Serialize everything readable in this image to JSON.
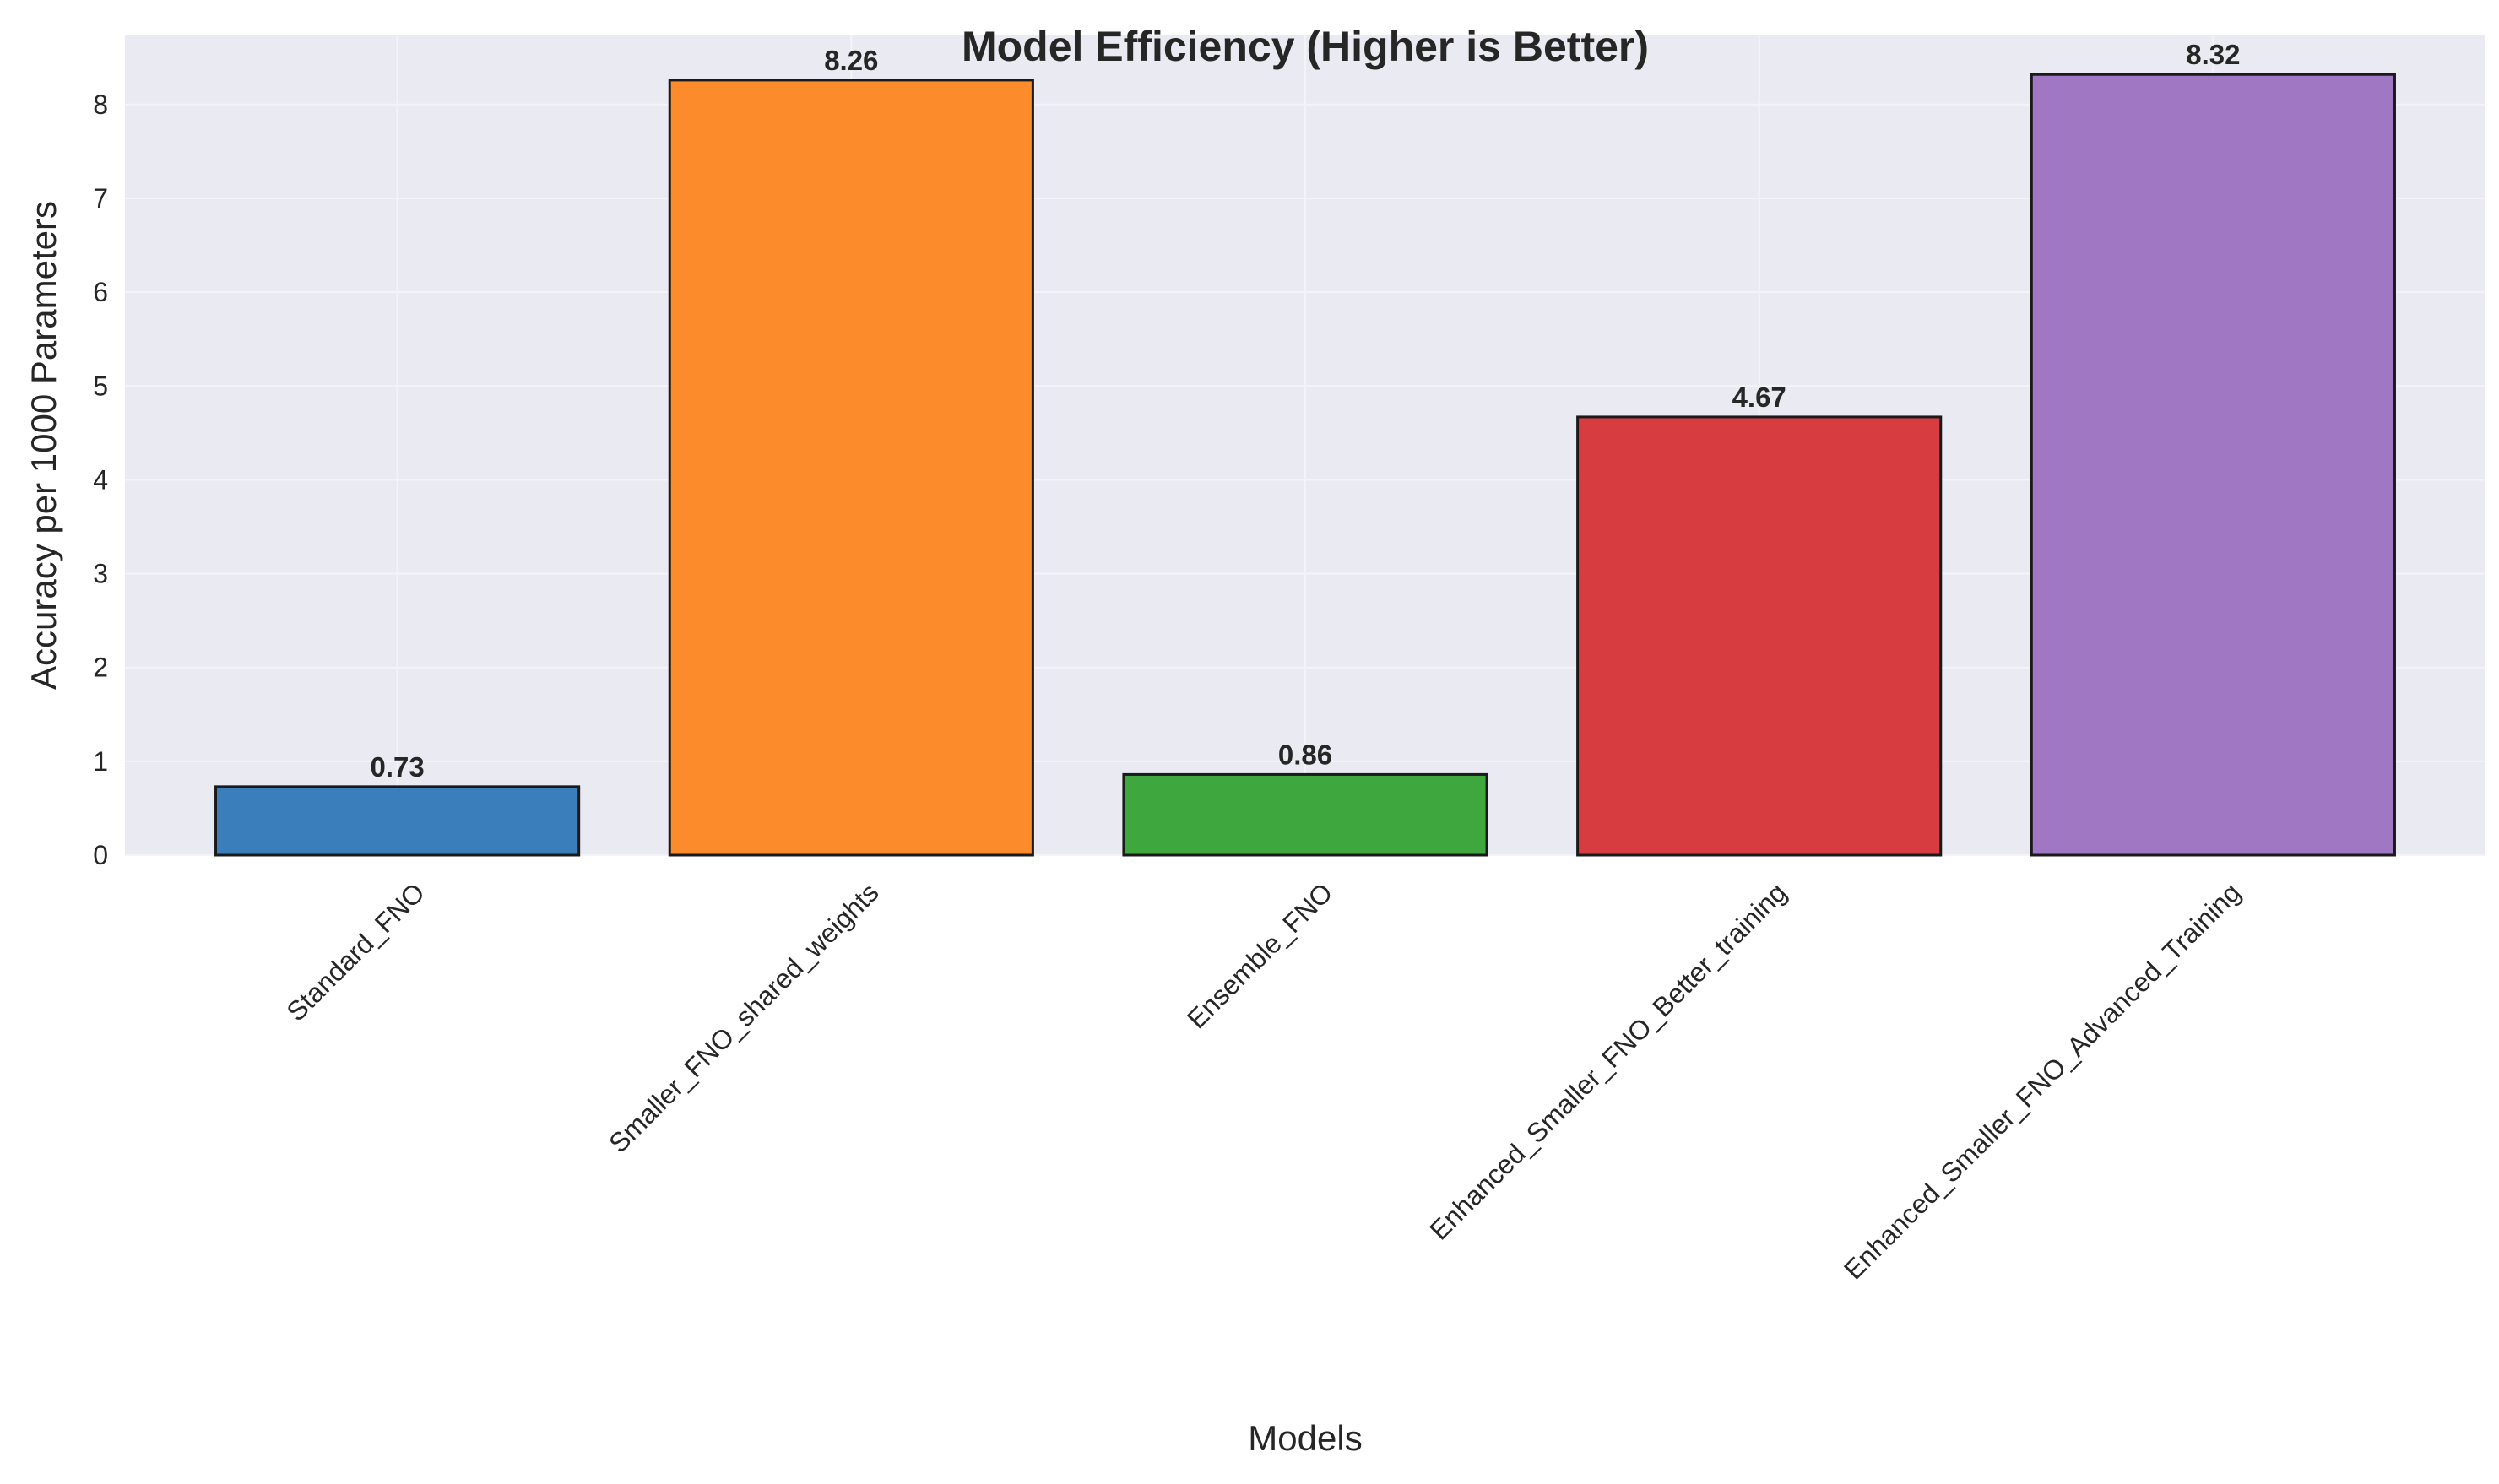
{
  "chart_data": {
    "type": "bar",
    "title": "Model Efficiency (Higher is Better)",
    "xlabel": "Models",
    "ylabel": "Accuracy per 1000 Parameters",
    "categories": [
      "Standard_FNO",
      "Smaller_FNO_shared_weights",
      "Ensemble_FNO",
      "Enhanced_Smaller_FNO_Better_training",
      "Enhanced_Smaller_FNO_Advanced_Training"
    ],
    "values": [
      0.73,
      8.26,
      0.86,
      4.67,
      8.32
    ],
    "data_labels": [
      "0.73",
      "8.26",
      "0.86",
      "4.67",
      "8.32"
    ],
    "colors": [
      "#3a7fbb",
      "#fb8b2b",
      "#3ea83e",
      "#d73d40",
      "#9f77c2"
    ],
    "edge_color": "#1a1a1a",
    "background_color": "#eaeaf2",
    "grid_color": "#f4f4f8",
    "grid": true,
    "ylim": [
      0,
      8.736
    ],
    "yticks": [
      0,
      1,
      2,
      3,
      4,
      5,
      6,
      7,
      8
    ],
    "xtick_rotation_deg": 45,
    "legend": "none"
  }
}
